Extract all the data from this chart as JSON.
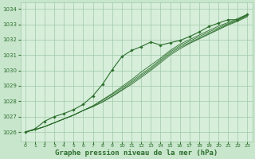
{
  "background_color": "#c8e6cc",
  "plot_bg_color": "#d6eeda",
  "grid_color": "#a0c8a8",
  "line_color": "#2d6e2d",
  "title": "Graphe pression niveau de la mer (hPa)",
  "title_fontsize": 6.5,
  "ylim": [
    1025.4,
    1034.4
  ],
  "yticks": [
    1026,
    1027,
    1028,
    1029,
    1030,
    1031,
    1032,
    1033,
    1034
  ],
  "xlim": [
    -0.5,
    23.5
  ],
  "xticks": [
    0,
    1,
    2,
    3,
    4,
    5,
    6,
    7,
    8,
    9,
    10,
    11,
    12,
    13,
    14,
    15,
    16,
    17,
    18,
    19,
    20,
    21,
    22,
    23
  ],
  "hours": [
    0,
    1,
    2,
    3,
    4,
    5,
    6,
    7,
    8,
    9,
    10,
    11,
    12,
    13,
    14,
    15,
    16,
    17,
    18,
    19,
    20,
    21,
    22,
    23
  ],
  "line_plain_1": [
    1026.0,
    1026.15,
    1026.35,
    1026.6,
    1026.85,
    1027.1,
    1027.4,
    1027.65,
    1027.95,
    1028.3,
    1028.7,
    1029.1,
    1029.55,
    1030.0,
    1030.5,
    1031.0,
    1031.4,
    1031.75,
    1032.05,
    1032.35,
    1032.65,
    1032.95,
    1033.2,
    1033.5
  ],
  "line_plain_2": [
    1026.0,
    1026.15,
    1026.35,
    1026.6,
    1026.85,
    1027.1,
    1027.4,
    1027.65,
    1027.95,
    1028.35,
    1028.75,
    1029.2,
    1029.65,
    1030.1,
    1030.6,
    1031.1,
    1031.5,
    1031.8,
    1032.1,
    1032.4,
    1032.7,
    1033.0,
    1033.25,
    1033.55
  ],
  "line_plain_3": [
    1026.0,
    1026.15,
    1026.35,
    1026.6,
    1026.85,
    1027.1,
    1027.4,
    1027.7,
    1028.05,
    1028.45,
    1028.85,
    1029.3,
    1029.75,
    1030.2,
    1030.7,
    1031.2,
    1031.6,
    1031.9,
    1032.2,
    1032.5,
    1032.78,
    1033.05,
    1033.3,
    1033.6
  ],
  "line_plain_4": [
    1026.0,
    1026.15,
    1026.35,
    1026.6,
    1026.85,
    1027.1,
    1027.4,
    1027.7,
    1028.1,
    1028.5,
    1028.95,
    1029.4,
    1029.9,
    1030.35,
    1030.8,
    1031.3,
    1031.7,
    1032.0,
    1032.3,
    1032.6,
    1032.88,
    1033.12,
    1033.38,
    1033.65
  ],
  "line_marker": [
    1026.0,
    1026.2,
    1026.7,
    1027.0,
    1027.2,
    1027.45,
    1027.8,
    1028.35,
    1029.1,
    1030.05,
    1030.9,
    1031.3,
    1031.55,
    1031.85,
    1031.65,
    1031.8,
    1031.95,
    1032.2,
    1032.5,
    1032.85,
    1033.08,
    1033.3,
    1033.3,
    1033.65
  ]
}
